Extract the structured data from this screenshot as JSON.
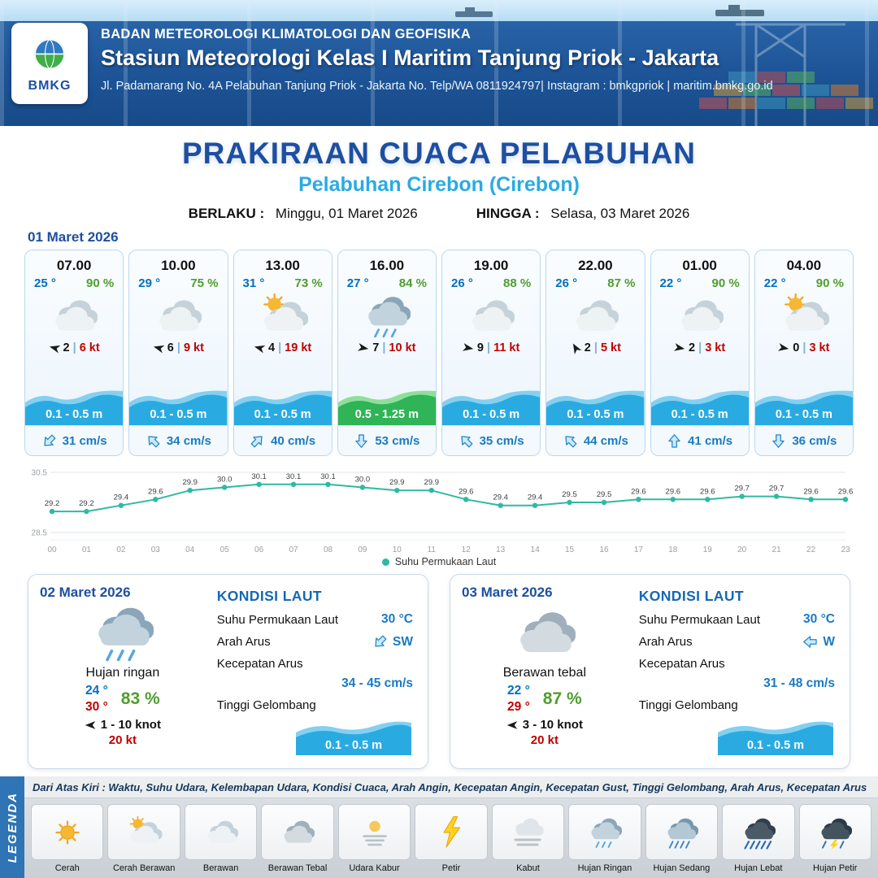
{
  "colors": {
    "accent_blue": "#1d4fa1",
    "cyan": "#29abe2",
    "temp_blue": "#0070c0",
    "humidity_green": "#4f9d2f",
    "gust_red": "#c00000",
    "wave_blue": "#29abe2",
    "wave_green": "#2fb457",
    "chart_teal": "#2fb9a4"
  },
  "header": {
    "agency": "BADAN METEOROLOGI KLIMATOLOGI DAN GEOFISIKA",
    "station": "Stasiun Meteorologi Kelas I Maritim Tanjung Priok - Jakarta",
    "contact": "Jl. Padamarang No. 4A Pelabuhan Tanjung Priok - Jakarta No. Telp/WA 0811924797| Instagram : bmkgpriok | maritim.bmkg.go.id",
    "logo_text": "BMKG"
  },
  "title": {
    "main": "PRAKIRAAN CUACA PELABUHAN",
    "port": "Pelabuhan Cirebon (Cirebon)",
    "valid_from_label": "BERLAKU :",
    "valid_from": "Minggu, 01 Maret 2026",
    "valid_to_label": "HINGGA :",
    "valid_to": "Selasa, 03 Maret 2026"
  },
  "hourly": {
    "date": "01 Maret 2026",
    "divider": "|",
    "cards": [
      {
        "time": "07.00",
        "temp": "25 °",
        "humidity": "90 %",
        "icon": "berawan",
        "wind_rot": 195,
        "wind_speed": "2",
        "gust": "6 kt",
        "wave_height": "0.1 - 0.5 m",
        "wave_variant": "blue",
        "current_rot": 45,
        "current_speed": "31 cm/s"
      },
      {
        "time": "10.00",
        "temp": "29 °",
        "humidity": "75 %",
        "icon": "berawan",
        "wind_rot": 195,
        "wind_speed": "6",
        "gust": "9 kt",
        "wave_height": "0.1 - 0.5 m",
        "wave_variant": "blue",
        "current_rot": 135,
        "current_speed": "34 cm/s"
      },
      {
        "time": "13.00",
        "temp": "31 °",
        "humidity": "73 %",
        "icon": "cerah-berawan",
        "wind_rot": 195,
        "wind_speed": "4",
        "gust": "19 kt",
        "wave_height": "0.1 - 0.5 m",
        "wave_variant": "blue",
        "current_rot": 225,
        "current_speed": "40 cm/s"
      },
      {
        "time": "16.00",
        "temp": "27 °",
        "humidity": "84 %",
        "icon": "hujan-ringan",
        "wind_rot": 10,
        "wind_speed": "7",
        "gust": "10 kt",
        "wave_height": "0.5 - 1.25 m",
        "wave_variant": "green",
        "current_rot": 0,
        "current_speed": "53 cm/s"
      },
      {
        "time": "19.00",
        "temp": "26 °",
        "humidity": "88 %",
        "icon": "berawan",
        "wind_rot": 10,
        "wind_speed": "9",
        "gust": "11 kt",
        "wave_height": "0.1 - 0.5 m",
        "wave_variant": "blue",
        "current_rot": 135,
        "current_speed": "35 cm/s"
      },
      {
        "time": "22.00",
        "temp": "26 °",
        "humidity": "87 %",
        "icon": "berawan",
        "wind_rot": 240,
        "wind_speed": "2",
        "gust": "5 kt",
        "wave_height": "0.1 - 0.5 m",
        "wave_variant": "blue",
        "current_rot": 135,
        "current_speed": "44 cm/s"
      },
      {
        "time": "01.00",
        "temp": "22 °",
        "humidity": "90 %",
        "icon": "berawan",
        "wind_rot": 10,
        "wind_speed": "2",
        "gust": "3 kt",
        "wave_height": "0.1 - 0.5 m",
        "wave_variant": "blue",
        "current_rot": 180,
        "current_speed": "41 cm/s"
      },
      {
        "time": "04.00",
        "temp": "22 °",
        "humidity": "90 %",
        "icon": "cerah-berawan",
        "wind_rot": 10,
        "wind_speed": "0",
        "gust": "3 kt",
        "wave_height": "0.1 - 0.5 m",
        "wave_variant": "blue",
        "current_rot": 0,
        "current_speed": "36 cm/s"
      }
    ]
  },
  "chart_data": {
    "type": "line",
    "series_name": "Suhu Permukaan Laut",
    "x": [
      "00",
      "01",
      "02",
      "03",
      "04",
      "05",
      "06",
      "07",
      "08",
      "09",
      "10",
      "11",
      "12",
      "13",
      "14",
      "15",
      "16",
      "17",
      "18",
      "19",
      "20",
      "21",
      "22",
      "23"
    ],
    "values": [
      29.2,
      29.2,
      29.4,
      29.6,
      29.9,
      30.0,
      30.1,
      30.1,
      30.1,
      30.0,
      29.9,
      29.9,
      29.6,
      29.4,
      29.4,
      29.5,
      29.5,
      29.6,
      29.6,
      29.6,
      29.7,
      29.7,
      29.6,
      29.6
    ],
    "ylim": [
      28.5,
      30.5
    ],
    "yticks": [
      30.5,
      28.5
    ],
    "line_color": "#2fb9a4",
    "grid": true,
    "legend_position": "bottom"
  },
  "daily": {
    "sea_title": "KONDISI LAUT",
    "sst_label": "Suhu Permukaan Laut",
    "dir_label": "Arah Arus",
    "spd_label": "Kecepatan Arus",
    "wave_label": "Tinggi Gelombang",
    "cards": [
      {
        "date": "02 Maret 2026",
        "icon": "hujan-ringan",
        "condition": "Hujan ringan",
        "temp_min": "24 °",
        "temp_max": "30 °",
        "humidity": "83 %",
        "wind_rot": 180,
        "wind": "1 - 10 knot",
        "gust": "20 kt",
        "sst": "30 °C",
        "current_dir": "SW",
        "current_dir_rot": 45,
        "current_speed": "34 - 45 cm/s",
        "wave": "0.1 - 0.5 m"
      },
      {
        "date": "03 Maret 2026",
        "icon": "berawan-tebal",
        "condition": "Berawan tebal",
        "temp_min": "22 °",
        "temp_max": "29 °",
        "humidity": "87 %",
        "wind_rot": 180,
        "wind": "3 - 10 knot",
        "gust": "20 kt",
        "sst": "30 °C",
        "current_dir": "W",
        "current_dir_rot": 90,
        "current_speed": "31 - 48 cm/s",
        "wave": "0.1 - 0.5 m"
      }
    ]
  },
  "legend": {
    "bar_label": "LEGENDA",
    "note": "Dari Atas Kiri : Waktu, Suhu Udara, Kelembapan Udara, Kondisi Cuaca, Arah Angin, Kecepatan Angin, Kecepatan Gust, Tinggi Gelombang, Arah Arus, Kecepatan Arus",
    "items": [
      {
        "label": "Cerah",
        "icon": "cerah"
      },
      {
        "label": "Cerah Berawan",
        "icon": "cerah-berawan"
      },
      {
        "label": "Berawan",
        "icon": "berawan"
      },
      {
        "label": "Berawan Tebal",
        "icon": "berawan-tebal"
      },
      {
        "label": "Udara Kabur",
        "icon": "udara-kabur"
      },
      {
        "label": "Petir",
        "icon": "petir"
      },
      {
        "label": "Kabut",
        "icon": "kabut"
      },
      {
        "label": "Hujan Ringan",
        "icon": "hujan-ringan"
      },
      {
        "label": "Hujan Sedang",
        "icon": "hujan-sedang"
      },
      {
        "label": "Hujan Lebat",
        "icon": "hujan-lebat"
      },
      {
        "label": "Hujan Petir",
        "icon": "hujan-petir"
      }
    ]
  }
}
